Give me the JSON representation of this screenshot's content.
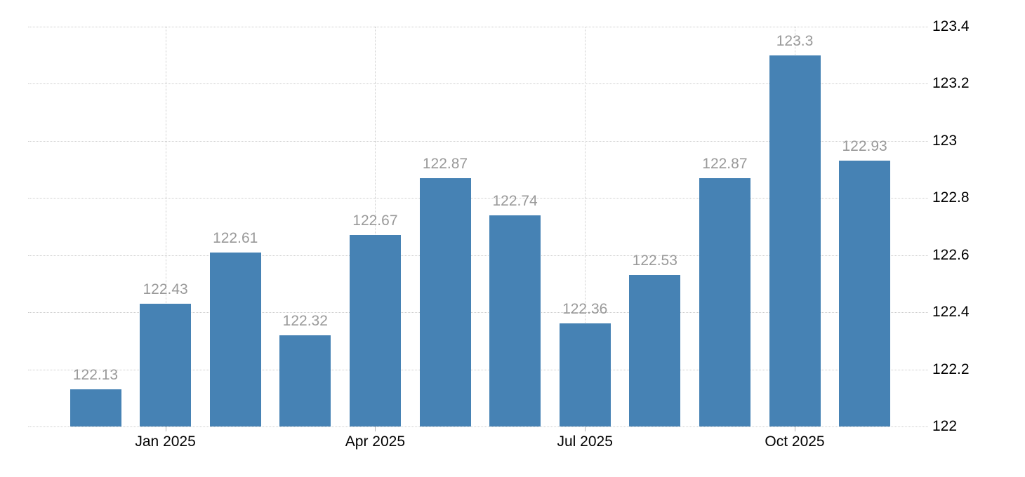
{
  "chart_data": {
    "type": "bar",
    "title": "",
    "xlabel": "",
    "ylabel": "",
    "values": [
      122.13,
      122.43,
      122.61,
      122.32,
      122.67,
      122.87,
      122.74,
      122.36,
      122.53,
      122.87,
      123.3,
      122.93
    ],
    "value_labels": [
      "122.13",
      "122.43",
      "122.61",
      "122.32",
      "122.67",
      "122.87",
      "122.74",
      "122.36",
      "122.53",
      "122.87",
      "123.3",
      "122.93"
    ],
    "x_ticks": [
      {
        "index": 1,
        "label": "Jan 2025"
      },
      {
        "index": 4,
        "label": "Apr 2025"
      },
      {
        "index": 7,
        "label": "Jul 2025"
      },
      {
        "index": 10,
        "label": "Oct 2025"
      }
    ],
    "y_ticks": [
      "122",
      "122.2",
      "122.4",
      "122.6",
      "122.8",
      "123",
      "123.2",
      "123.4"
    ],
    "ylim": [
      122,
      123.4
    ],
    "y_axis_side": "right",
    "legend": "none",
    "grid": {
      "horizontal": true,
      "vertical_at_x_ticks": true,
      "style": "dotted"
    },
    "colors": {
      "bar": "#4682b4",
      "value_label": "#999999",
      "axis_label": "#000000",
      "gridline": "#cdcdcd",
      "tick_mark": "#b3b3b3",
      "background": "#ffffff"
    }
  }
}
